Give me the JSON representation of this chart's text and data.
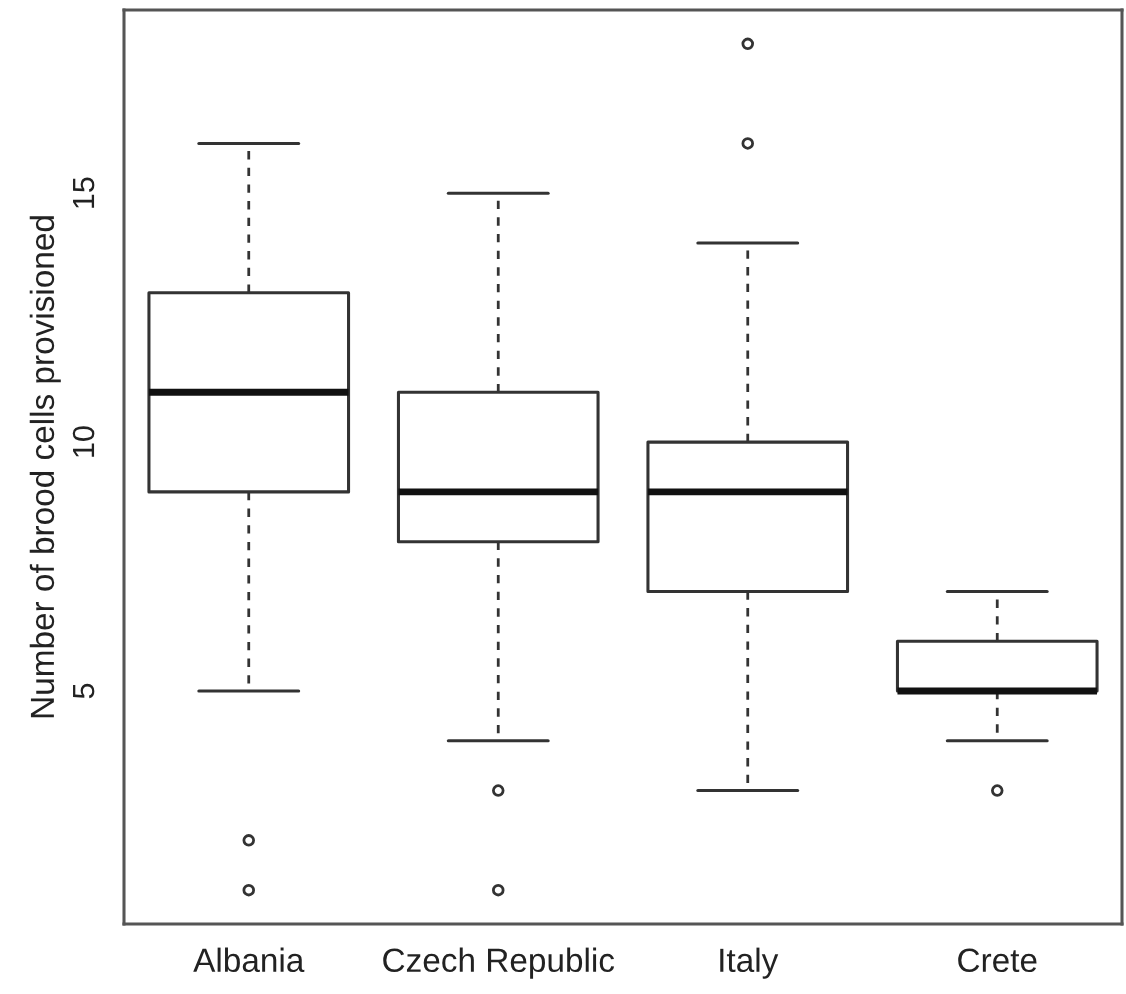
{
  "chart_data": {
    "type": "box",
    "ylabel": "Number of brood cells provisioned",
    "categories": [
      "Albania",
      "Czech Republic",
      "Italy",
      "Crete"
    ],
    "boxes": [
      {
        "low": 5,
        "q1": 9,
        "median": 11,
        "q3": 13,
        "high": 16,
        "outliers": [
          1,
          2
        ]
      },
      {
        "low": 4,
        "q1": 8,
        "median": 9,
        "q3": 11,
        "high": 15,
        "outliers": [
          1,
          3
        ]
      },
      {
        "low": 3,
        "q1": 7,
        "median": 9,
        "q3": 10,
        "high": 14,
        "outliers": [
          16,
          18
        ]
      },
      {
        "low": 4,
        "q1": 5,
        "median": 5,
        "q3": 6,
        "high": 7,
        "outliers": [
          3
        ]
      }
    ],
    "ylim": [
      0.32,
      18.68
    ],
    "yticks": [
      5,
      10,
      15
    ],
    "grid": false,
    "legend": false
  }
}
